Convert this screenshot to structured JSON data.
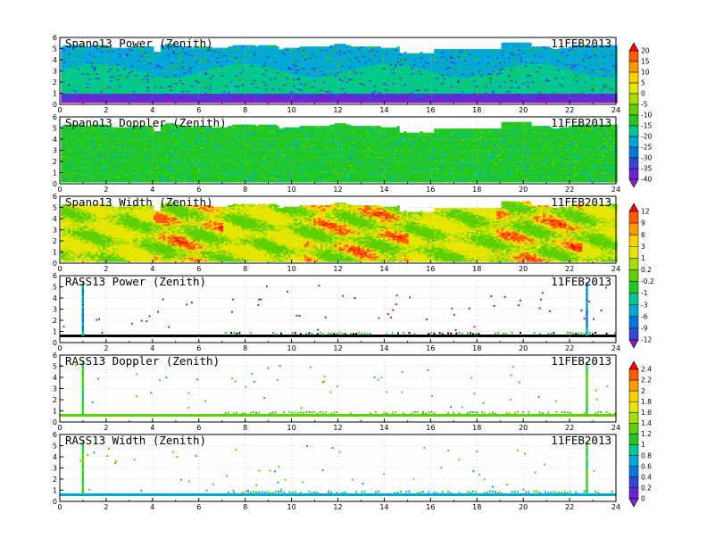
{
  "chart_data": {
    "type": "heatmap",
    "date": "11FEB2013",
    "x_ticks": [
      0,
      2,
      4,
      6,
      8,
      10,
      12,
      14,
      16,
      18,
      20,
      22,
      24
    ],
    "y_ticks": [
      0,
      1,
      2,
      3,
      4,
      5,
      6
    ],
    "xlim": [
      0,
      24
    ],
    "ylim": [
      0,
      6
    ],
    "grid": true,
    "panels": [
      {
        "title": "Spano13 Power (Zenith)",
        "date": "11FEB2013",
        "kind": "spano",
        "field": "power",
        "colorbar": "cb1"
      },
      {
        "title": "Spano13 Doppler (Zenith)",
        "date": "11FEB2013",
        "kind": "spano",
        "field": "doppler",
        "colorbar": "cb1"
      },
      {
        "title": "Spano13 Width (Zenith)",
        "date": "11FEB2013",
        "kind": "spano",
        "field": "width",
        "colorbar": "cb2"
      },
      {
        "title": "RASS13 Power (Zenith)",
        "date": "11FEB2013",
        "kind": "rass",
        "field": "power",
        "colorbar": "cb2"
      },
      {
        "title": "RASS13 Doppler (Zenith)",
        "date": "11FEB2013",
        "kind": "rass",
        "field": "doppler",
        "colorbar": "cb3"
      },
      {
        "title": "RASS13 Width (Zenith)",
        "date": "11FEB2013",
        "kind": "rass",
        "field": "width",
        "colorbar": "cb3"
      }
    ],
    "rass_vertical_lines_hours": [
      0.95,
      22.7
    ],
    "rass_baseline_height": 0.6,
    "colorbars": [
      {
        "id": "cb1",
        "labels": [
          "20",
          "15",
          "10",
          "5",
          "0",
          "-5",
          "-10",
          "-15",
          "-20",
          "-25",
          "-30",
          "-35",
          "-40"
        ],
        "colors": [
          "#ff0000",
          "#ff5a00",
          "#ff9a00",
          "#ffd000",
          "#e6e600",
          "#a6e000",
          "#5cd000",
          "#22c820",
          "#00c890",
          "#00a8d8",
          "#0078e0",
          "#3846d8",
          "#6a24d0",
          "#8a1cc8"
        ]
      },
      {
        "id": "cb2",
        "labels": [
          "12",
          "9",
          "6",
          "3",
          "1",
          "0.2",
          "-0.2",
          "-1",
          "-3",
          "-6",
          "-9",
          "-12"
        ],
        "colors": [
          "#ff0000",
          "#ff5a00",
          "#ff9a00",
          "#ffd000",
          "#e6e600",
          "#a6e000",
          "#5cd000",
          "#22c820",
          "#00c890",
          "#00a8d8",
          "#0078e0",
          "#3846d8",
          "#8a1cc8"
        ]
      },
      {
        "id": "cb3",
        "labels": [
          "2.4",
          "2.2",
          "2",
          "1.8",
          "1.6",
          "1.4",
          "1.2",
          "1",
          "0.8",
          "0.6",
          "0.4",
          "0.2",
          "0"
        ],
        "colors": [
          "#ff0000",
          "#ff5a00",
          "#ff9a00",
          "#ffd000",
          "#e6e600",
          "#a6e000",
          "#5cd000",
          "#22c820",
          "#00c890",
          "#00a8d8",
          "#0078e0",
          "#3846d8",
          "#6a24d0",
          "#8a1cc8"
        ]
      }
    ]
  }
}
